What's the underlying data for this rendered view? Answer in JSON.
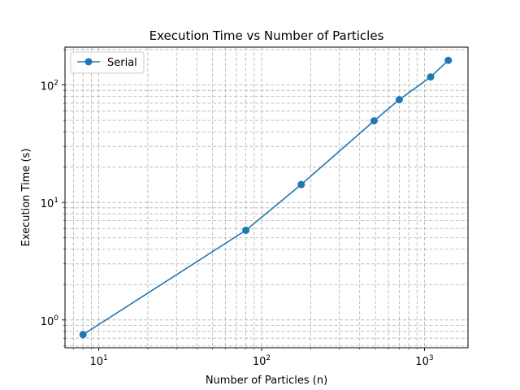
{
  "chart_data": {
    "type": "line",
    "title": "Execution Time vs Number of Particles",
    "xlabel": "Number of Particles (n)",
    "ylabel": "Execution Time (s)",
    "xscale": "log",
    "yscale": "log",
    "xlim": [
      6.2,
      1850
    ],
    "ylim": [
      0.58,
      210
    ],
    "xtick_labels": [
      "10^1",
      "10^2",
      "10^3"
    ],
    "ytick_labels": [
      "10^0",
      "10^1",
      "10^2"
    ],
    "grid": true,
    "grid_style": "dashed",
    "legend_position": "top-left",
    "series": [
      {
        "name": "Serial",
        "color": "#1f77b4",
        "marker": "circle",
        "x": [
          8,
          80,
          175,
          490,
          700,
          1090,
          1400
        ],
        "y": [
          0.75,
          5.8,
          14.2,
          49.5,
          75,
          117,
          162
        ]
      }
    ]
  }
}
